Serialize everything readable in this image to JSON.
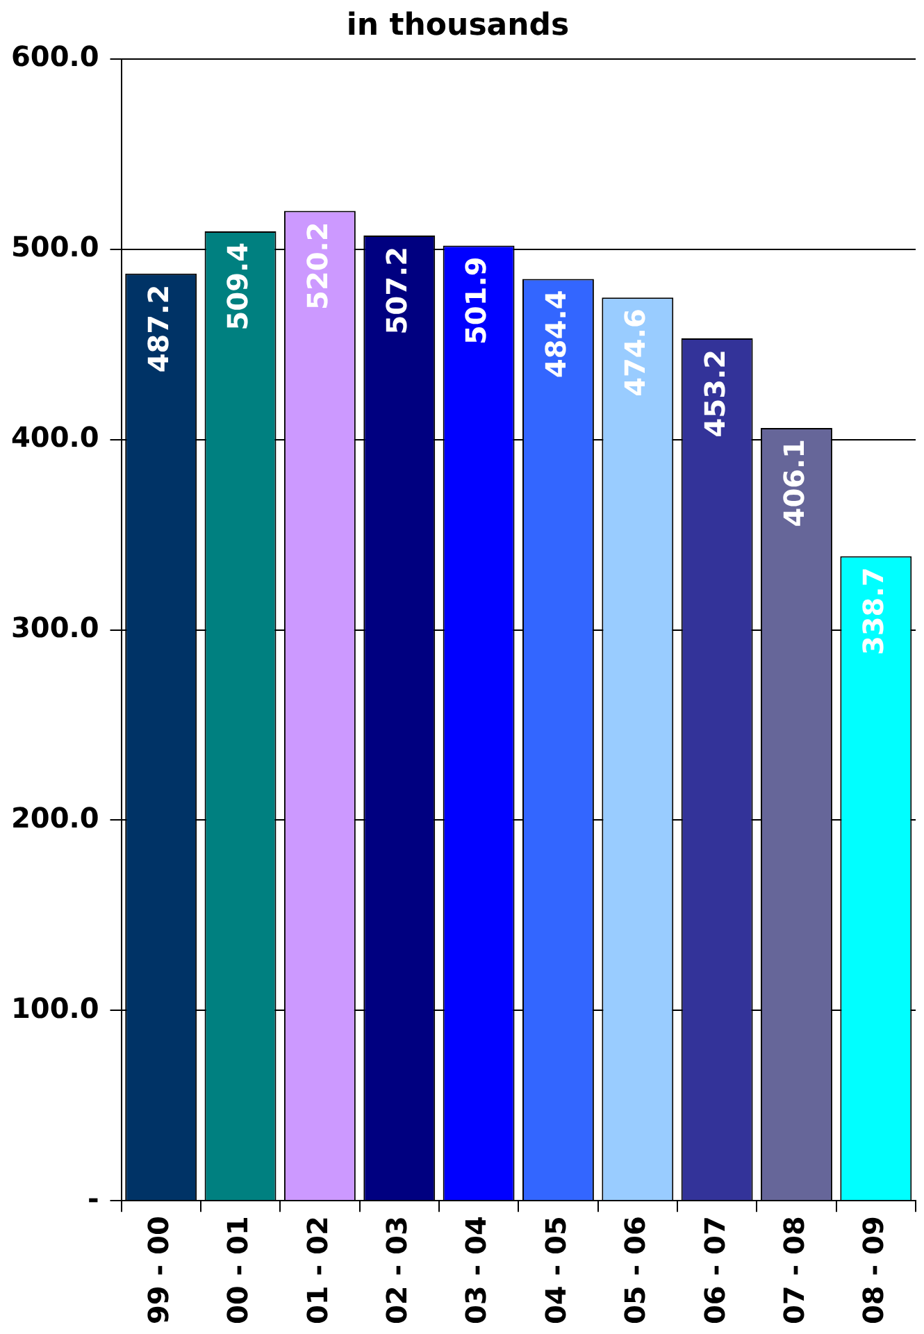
{
  "chart_data": {
    "type": "bar",
    "title": "in thousands",
    "categories": [
      "99 - 00",
      "00 - 01",
      "01 - 02",
      "02 - 03",
      "03 - 04",
      "04 - 05",
      "05 - 06",
      "06 - 07",
      "07 - 08",
      "08 - 09"
    ],
    "values": [
      487.2,
      509.4,
      520.2,
      507.2,
      501.9,
      484.4,
      474.6,
      453.2,
      406.1,
      338.7
    ],
    "colors": [
      "#003366",
      "#008080",
      "#cc99ff",
      "#000080",
      "#0000ff",
      "#3366ff",
      "#99ccff",
      "#333399",
      "#666699",
      "#00ffff"
    ],
    "ylim": [
      0,
      600
    ],
    "yticks": [
      {
        "value": 0,
        "label": "-"
      },
      {
        "value": 100,
        "label": "100.0"
      },
      {
        "value": 200,
        "label": "200.0"
      },
      {
        "value": 300,
        "label": "300.0"
      },
      {
        "value": 400,
        "label": "400.0"
      },
      {
        "value": 500,
        "label": "500.0"
      },
      {
        "value": 600,
        "label": "600.0"
      }
    ],
    "grid": "y",
    "data_labels": true
  }
}
